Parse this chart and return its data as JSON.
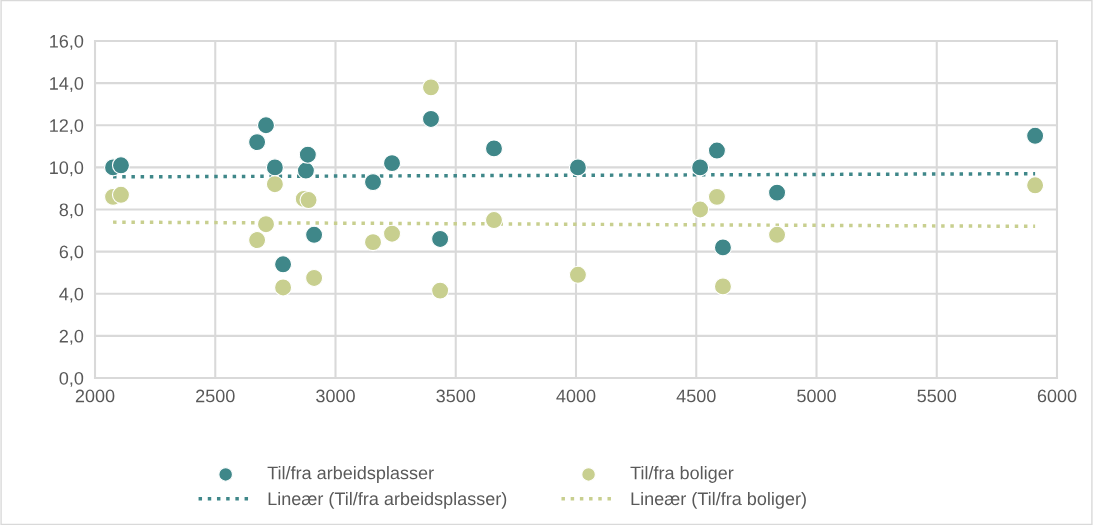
{
  "chart_data": {
    "type": "scatter",
    "xlim": [
      2000,
      6000
    ],
    "xticks": [
      2000,
      2500,
      3000,
      3500,
      4000,
      4500,
      5000,
      5500,
      6000
    ],
    "ylim": [
      0,
      16
    ],
    "yticks": [
      {
        "value": 0,
        "label": "0,0"
      },
      {
        "value": 2,
        "label": "2,0"
      },
      {
        "value": 4,
        "label": "4,0"
      },
      {
        "value": 6,
        "label": "6,0"
      },
      {
        "value": 8,
        "label": "8,0"
      },
      {
        "value": 10,
        "label": "10,0"
      },
      {
        "value": 12,
        "label": "12,0"
      },
      {
        "value": 14,
        "label": "14,0"
      },
      {
        "value": 16,
        "label": "16,0"
      }
    ],
    "grid": true,
    "legend": "bottom",
    "marker": "circle",
    "series": [
      {
        "name": "Til/fra arbeidsplasser",
        "color": "#3f8789",
        "x": [
          2075,
          2108,
          2674,
          2711,
          2748,
          2782,
          2877,
          2885,
          2911,
          3156,
          3235,
          3397,
          3435,
          3659,
          4008,
          4516,
          4586,
          4611,
          4836,
          5909
        ],
        "values": [
          10.0,
          10.1,
          11.2,
          12.0,
          10.0,
          5.4,
          9.85,
          10.6,
          6.8,
          9.3,
          10.2,
          12.3,
          6.6,
          10.9,
          10.0,
          10.0,
          10.8,
          6.2,
          8.8,
          11.5
        ]
      },
      {
        "name": "Til/fra boliger",
        "color": "#c8cf8f",
        "x": [
          2075,
          2108,
          2674,
          2711,
          2748,
          2782,
          2868,
          2888,
          2911,
          3156,
          3235,
          3397,
          3435,
          3659,
          4008,
          4516,
          4586,
          4611,
          4836,
          5909
        ],
        "values": [
          8.6,
          8.7,
          6.55,
          7.3,
          9.2,
          4.3,
          8.5,
          8.45,
          4.75,
          6.45,
          6.85,
          13.8,
          4.15,
          7.5,
          4.9,
          8.0,
          8.6,
          4.35,
          6.8,
          9.15
        ]
      },
      {
        "name": "Lineær (Til/fra arbeidsplasser)",
        "type": "line",
        "line_style": "dotted",
        "marker": "none",
        "color": "#3f8789",
        "x": [
          2075,
          5909
        ],
        "values": [
          9.55,
          9.7
        ]
      },
      {
        "name": "Lineær (Til/fra boliger)",
        "type": "line",
        "line_style": "dotted",
        "marker": "none",
        "color": "#c8cf8f",
        "x": [
          2075,
          5909
        ],
        "values": [
          7.4,
          7.2
        ]
      }
    ]
  }
}
